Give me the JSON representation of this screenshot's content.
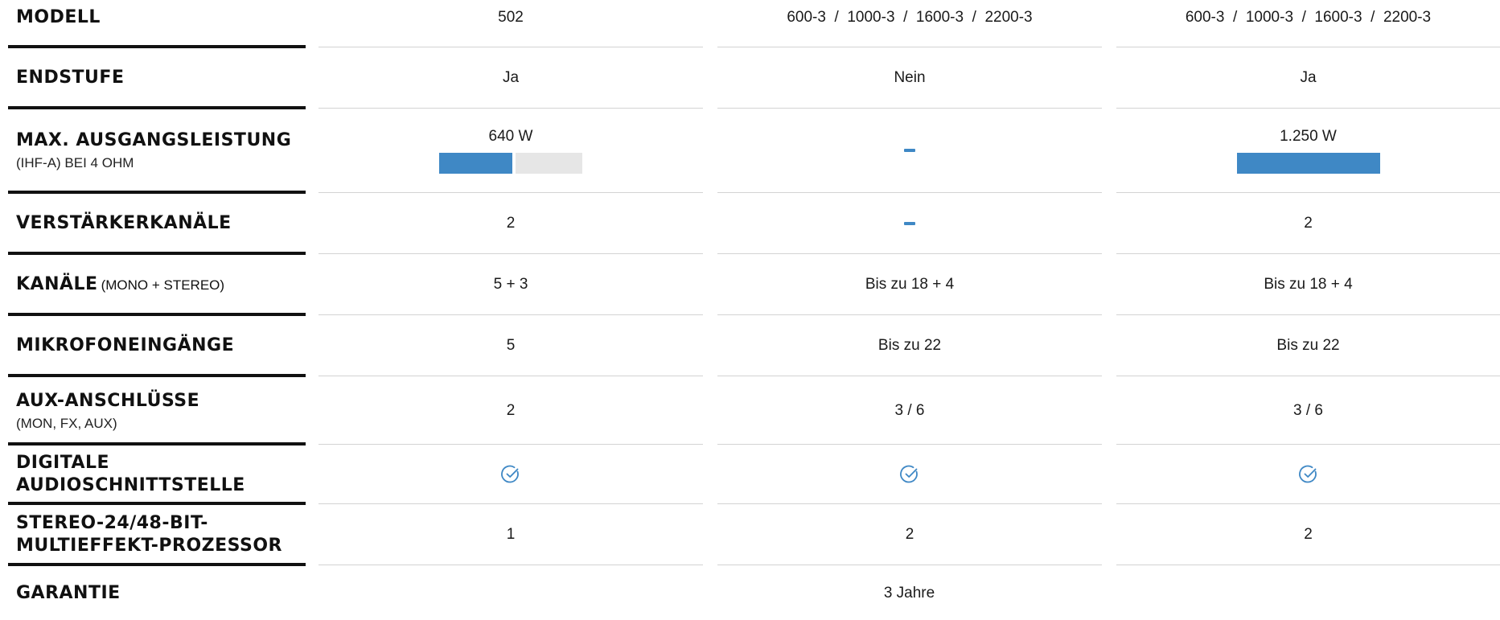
{
  "colors": {
    "accent": "#3f88c5",
    "bar_track": "#e6e6e6",
    "rule": "#111111",
    "divider": "#d3d3d3"
  },
  "rows": {
    "modell": {
      "label": "MODELL",
      "values": [
        "502",
        "600-3  /  1000-3  /  1600-3  /  2200-3",
        "600-3  /  1000-3  /  1600-3  /  2200-3"
      ]
    },
    "endstufe": {
      "label": "ENDSTUFE",
      "values": [
        "Ja",
        "Nein",
        "Ja"
      ]
    },
    "leistung": {
      "label": "MAX. AUSGANGSLEISTUNG",
      "sub": "(IHF-A) BEI 4 OHM",
      "values": [
        "640 W",
        "–",
        "1.250 W"
      ],
      "bar_fraction": [
        0.512,
        null,
        1.0
      ]
    },
    "verstaerker": {
      "label": "VERSTÄRKERKANÄLE",
      "values": [
        "2",
        "–",
        "2"
      ]
    },
    "kanaele": {
      "label": "KANÄLE",
      "inline_sub": "(MONO + STEREO)",
      "values": [
        "5 + 3",
        "Bis zu 18 + 4",
        "Bis zu 18 + 4"
      ]
    },
    "mikrofon": {
      "label": "MIKROFONEINGÄNGE",
      "values": [
        "5",
        "Bis zu 22",
        "Bis zu 22"
      ]
    },
    "aux": {
      "label": "AUX-ANSCHLÜSSE",
      "sub": "(MON, FX, AUX)",
      "values": [
        "2",
        "3 / 6",
        "3 / 6"
      ]
    },
    "digital": {
      "label_line1": "DIGITALE",
      "label_line2": "AUDIOSCHNITTSTELLE",
      "icon": "check-circle-icon"
    },
    "effekt": {
      "label_line1": "STEREO-24/48-BIT-",
      "label_line2": "MULTIEFFEKT-PROZESSOR",
      "values": [
        "1",
        "2",
        "2"
      ]
    },
    "garantie": {
      "label": "GARANTIE",
      "value": "3 Jahre"
    }
  }
}
